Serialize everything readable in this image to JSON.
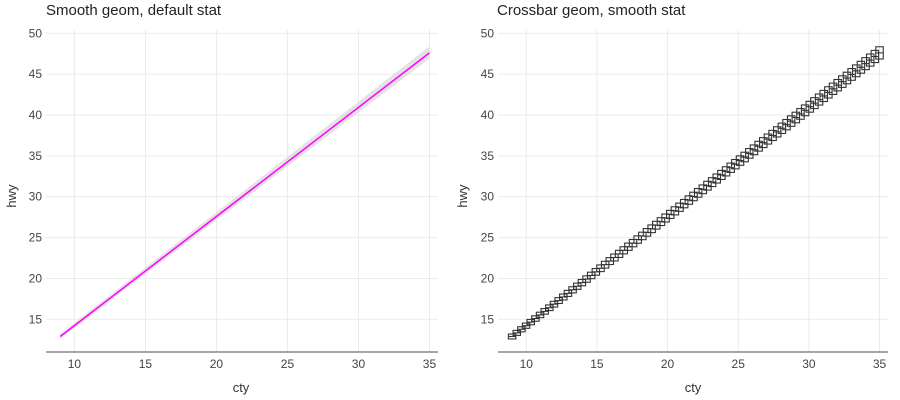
{
  "chart_data": [
    {
      "type": "line",
      "title": "Smooth geom, default stat",
      "xlabel": "cty",
      "ylabel": "hwy",
      "xlim": [
        8,
        35.6
      ],
      "ylim": [
        11,
        50.4
      ],
      "x_ticks": [
        10,
        15,
        20,
        25,
        30,
        35
      ],
      "y_ticks": [
        15,
        20,
        25,
        30,
        35,
        40,
        45,
        50
      ],
      "grid": true,
      "line_color": "#ff00ff",
      "ribbon_color": "#d9d9d9",
      "series": [
        {
          "x": [
            9,
            35
          ],
          "y": [
            12.9,
            47.6
          ],
          "ymin": [
            12.6,
            46.9
          ],
          "ymax": [
            13.2,
            48.4
          ]
        }
      ]
    },
    {
      "type": "crossbar",
      "title": "Crossbar geom, smooth stat",
      "xlabel": "cty",
      "ylabel": "hwy",
      "xlim": [
        8,
        35.6
      ],
      "ylim": [
        11,
        50.4
      ],
      "x_ticks": [
        10,
        15,
        20,
        25,
        30,
        35
      ],
      "y_ticks": [
        15,
        20,
        25,
        30,
        35,
        40,
        45,
        50
      ],
      "grid": true,
      "bar_color": "#333333",
      "series": [
        {
          "x_start": 9,
          "x_end": 35,
          "n_points": 80,
          "y_start": 12.9,
          "y_end": 47.6,
          "se_start": 0.3,
          "se_end": 0.75
        }
      ]
    }
  ]
}
